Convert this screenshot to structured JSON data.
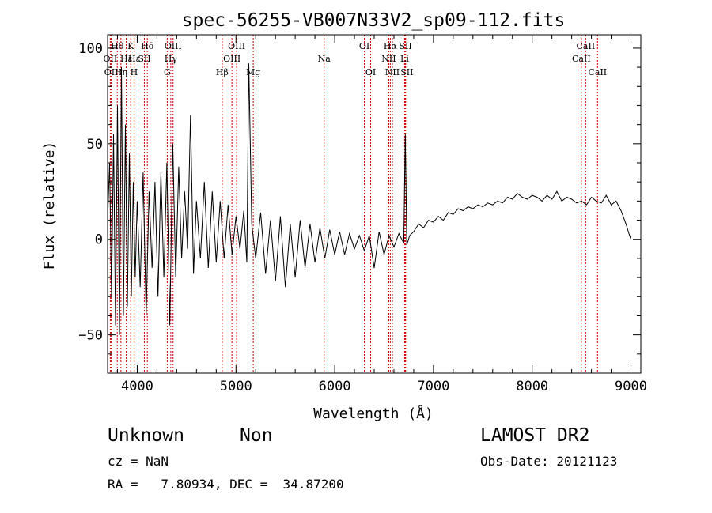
{
  "chart_data": {
    "type": "line",
    "title": "spec-56255-VB007N33V2_sp09-112.fits",
    "xlabel": "Wavelength (Å)",
    "ylabel": "Flux (relative)",
    "xlim": [
      3700,
      9100
    ],
    "ylim": [
      -70,
      107
    ],
    "x_ticks": [
      4000,
      5000,
      6000,
      7000,
      8000,
      9000
    ],
    "y_ticks": [
      -50,
      0,
      50,
      100
    ],
    "x_tick_labels": [
      "4000",
      "5000",
      "6000",
      "7000",
      "8000",
      "9000"
    ],
    "y_tick_labels": [
      "−50",
      "0",
      "50",
      "100"
    ],
    "line_color": "#000000",
    "marker_color": "#cc0000",
    "series": [
      {
        "x": [
          3700,
          3720,
          3740,
          3760,
          3780,
          3800,
          3820,
          3840,
          3860,
          3880,
          3900,
          3920,
          3940,
          3960,
          3980,
          4000,
          4030,
          4060,
          4090,
          4120,
          4150,
          4180,
          4210,
          4240,
          4270,
          4300,
          4330,
          4360,
          4390,
          4420,
          4450,
          4480,
          4510,
          4540,
          4570,
          4600,
          4640,
          4680,
          4720,
          4760,
          4800,
          4840,
          4880,
          4920,
          4960,
          5000,
          5040,
          5080,
          5110,
          5130,
          5160,
          5200,
          5250,
          5300,
          5350,
          5400,
          5450,
          5500,
          5550,
          5600,
          5650,
          5700,
          5750,
          5800,
          5850,
          5900,
          5950,
          6000,
          6050,
          6100,
          6150,
          6200,
          6250,
          6300,
          6350,
          6400,
          6450,
          6500,
          6550,
          6600,
          6650,
          6700,
          6715,
          6730,
          6760,
          6800,
          6850,
          6900,
          6950,
          7000,
          7050,
          7100,
          7150,
          7200,
          7250,
          7300,
          7350,
          7400,
          7450,
          7500,
          7550,
          7600,
          7650,
          7700,
          7750,
          7800,
          7850,
          7900,
          7950,
          8000,
          8050,
          8100,
          8150,
          8200,
          8250,
          8300,
          8350,
          8400,
          8450,
          8500,
          8550,
          8600,
          8650,
          8700,
          8750,
          8800,
          8850,
          8900,
          8950,
          8980,
          9000
        ],
        "y": [
          10,
          40,
          -30,
          55,
          -45,
          70,
          -50,
          90,
          -40,
          60,
          -35,
          45,
          -30,
          30,
          -20,
          20,
          -25,
          35,
          -40,
          25,
          -15,
          30,
          -30,
          35,
          -20,
          40,
          -45,
          50,
          -20,
          38,
          -10,
          25,
          -5,
          65,
          -18,
          20,
          -10,
          30,
          -15,
          25,
          -12,
          20,
          -10,
          18,
          -8,
          12,
          -5,
          15,
          -12,
          92,
          8,
          -10,
          14,
          -18,
          10,
          -22,
          12,
          -25,
          8,
          -20,
          10,
          -15,
          8,
          -12,
          6,
          -10,
          5,
          -8,
          4,
          -8,
          3,
          -5,
          2,
          -6,
          2,
          -15,
          4,
          -8,
          2,
          -4,
          3,
          -2,
          55,
          -3,
          2,
          4,
          8,
          6,
          10,
          9,
          12,
          10,
          14,
          13,
          16,
          15,
          17,
          16,
          18,
          17,
          19,
          18,
          20,
          19,
          22,
          21,
          24,
          22,
          21,
          23,
          22,
          20,
          23,
          21,
          25,
          20,
          22,
          21,
          19,
          20,
          18,
          22,
          20,
          19,
          23,
          18,
          20,
          15,
          8,
          3,
          0
        ]
      }
    ],
    "emission_lines": [
      {
        "label": "Hθ",
        "x": 3798,
        "row": 1
      },
      {
        "label": "K",
        "x": 3934,
        "row": 1
      },
      {
        "label": "Hδ",
        "x": 4102,
        "row": 1
      },
      {
        "label": "OIII",
        "x": 4363,
        "row": 1
      },
      {
        "label": "OIII",
        "x": 5007,
        "row": 1
      },
      {
        "label": "OI",
        "x": 6300,
        "row": 1
      },
      {
        "label": "Hα",
        "x": 6563,
        "row": 1
      },
      {
        "label": "SII",
        "x": 6717,
        "row": 1
      },
      {
        "label": "CaII",
        "x": 8542,
        "row": 1
      },
      {
        "label": "OII",
        "x": 3727,
        "row": 2
      },
      {
        "label": "Hε",
        "x": 3889,
        "row": 2
      },
      {
        "label": "Hε",
        "x": 3970,
        "row": 2
      },
      {
        "label": "SII",
        "x": 4072,
        "row": 2
      },
      {
        "label": "Hγ",
        "x": 4340,
        "row": 2
      },
      {
        "label": "OIII",
        "x": 4959,
        "row": 2
      },
      {
        "label": "Na",
        "x": 5893,
        "row": 2
      },
      {
        "label": "NII",
        "x": 6548,
        "row": 2
      },
      {
        "label": "Li",
        "x": 6708,
        "row": 2
      },
      {
        "label": "CaII",
        "x": 8498,
        "row": 2
      },
      {
        "label": "OII",
        "x": 3737,
        "row": 3
      },
      {
        "label": "Hη",
        "x": 3835,
        "row": 3
      },
      {
        "label": "H",
        "x": 3968,
        "row": 3
      },
      {
        "label": "G",
        "x": 4304,
        "row": 3
      },
      {
        "label": "Hβ",
        "x": 4861,
        "row": 3
      },
      {
        "label": "Mg",
        "x": 5175,
        "row": 3
      },
      {
        "label": "OI",
        "x": 6364,
        "row": 3
      },
      {
        "label": "NII",
        "x": 6584,
        "row": 3
      },
      {
        "label": "SII",
        "x": 6731,
        "row": 3
      },
      {
        "label": "CaII",
        "x": 8662,
        "row": 3
      }
    ]
  },
  "info": {
    "class": "Unknown",
    "subclass": "Non",
    "survey": "LAMOST DR2",
    "cz": "cz = NaN",
    "obs_date": "Obs-Date: 20121123",
    "coords": "RA =   7.80934, DEC =  34.87200"
  }
}
